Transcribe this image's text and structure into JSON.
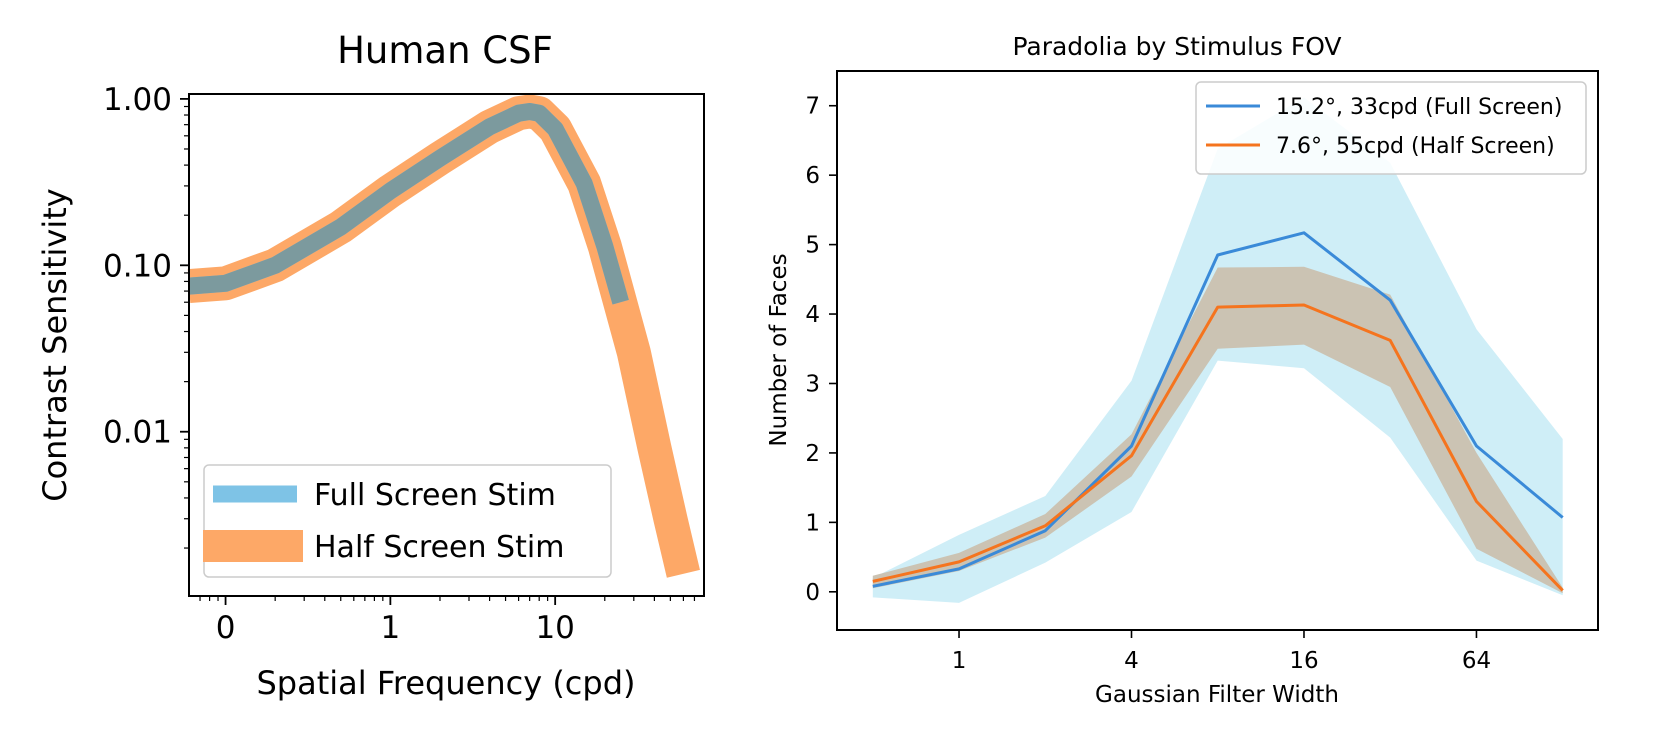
{
  "chart_data": [
    {
      "type": "line",
      "title": "Human CSF",
      "xlabel": "Spatial Frequency (cpd)",
      "ylabel": "Contrast Sensitivity",
      "xscale": "log",
      "yscale": "log",
      "xlim": [
        0.06,
        80
      ],
      "ylim": [
        0.00103,
        1.07
      ],
      "xticks": [
        {
          "value": 0.1,
          "label": "0"
        },
        {
          "value": 1,
          "label": "1"
        },
        {
          "value": 10,
          "label": "10"
        }
      ],
      "yticks": [
        {
          "value": 0.01,
          "label": "0.01"
        },
        {
          "value": 0.1,
          "label": "0.10"
        },
        {
          "value": 1,
          "label": "1.00"
        }
      ],
      "legend_position": "lower-left",
      "series": [
        {
          "name": "Full Screen Stim",
          "color": "#7ec3e6",
          "x": [
            0.06,
            0.1,
            0.2,
            0.5,
            1,
            2,
            4,
            6,
            7,
            8,
            10,
            15,
            20,
            25
          ],
          "y": [
            0.075,
            0.078,
            0.1,
            0.17,
            0.28,
            0.44,
            0.68,
            0.82,
            0.84,
            0.82,
            0.66,
            0.31,
            0.13,
            0.06
          ]
        },
        {
          "name": "Half Screen Stim",
          "color": "#fda867",
          "x": [
            0.06,
            0.1,
            0.2,
            0.5,
            1,
            2,
            4,
            6,
            7,
            8,
            10,
            15,
            20,
            30,
            40,
            50,
            60
          ],
          "y": [
            0.075,
            0.078,
            0.1,
            0.17,
            0.28,
            0.44,
            0.68,
            0.82,
            0.84,
            0.82,
            0.66,
            0.31,
            0.13,
            0.03,
            0.008,
            0.003,
            0.0014
          ]
        }
      ]
    },
    {
      "type": "line",
      "title": "Paradolia by Stimulus FOV",
      "xlabel": "Gaussian Filter Width",
      "ylabel": "Number of Faces",
      "xscale": "log2",
      "x": [
        0.5,
        1,
        2,
        4,
        8,
        16,
        32,
        64,
        128
      ],
      "xlim": [
        0.375,
        170
      ],
      "ylim": [
        -0.55,
        7.5
      ],
      "xticks": [
        1,
        4,
        16,
        64
      ],
      "yticks": [
        0,
        1,
        2,
        3,
        4,
        5,
        6,
        7
      ],
      "legend_position": "upper-right",
      "series": [
        {
          "name": "15.2°, 33cpd (Full Screen)",
          "color": "#3a8ad8",
          "band_color": "#cfeef7",
          "values": [
            0.08,
            0.33,
            0.88,
            2.1,
            4.85,
            5.17,
            4.2,
            2.1,
            1.07
          ],
          "lower": [
            -0.08,
            -0.16,
            0.42,
            1.15,
            3.33,
            3.22,
            2.22,
            0.45,
            -0.05
          ],
          "upper": [
            0.2,
            0.82,
            1.38,
            3.04,
            6.38,
            7.12,
            6.18,
            3.78,
            2.2
          ]
        },
        {
          "name": "7.6°, 55cpd (Half Screen)",
          "color": "#f5741e",
          "band_color": "#cbc3b3",
          "values": [
            0.15,
            0.43,
            0.95,
            1.96,
            4.1,
            4.13,
            3.62,
            1.3,
            0.02
          ],
          "lower": [
            0.05,
            0.3,
            0.78,
            1.66,
            3.5,
            3.56,
            2.95,
            0.62,
            -0.02
          ],
          "upper": [
            0.23,
            0.56,
            1.12,
            2.27,
            4.67,
            4.68,
            4.28,
            2.0,
            0.06
          ]
        }
      ]
    }
  ]
}
